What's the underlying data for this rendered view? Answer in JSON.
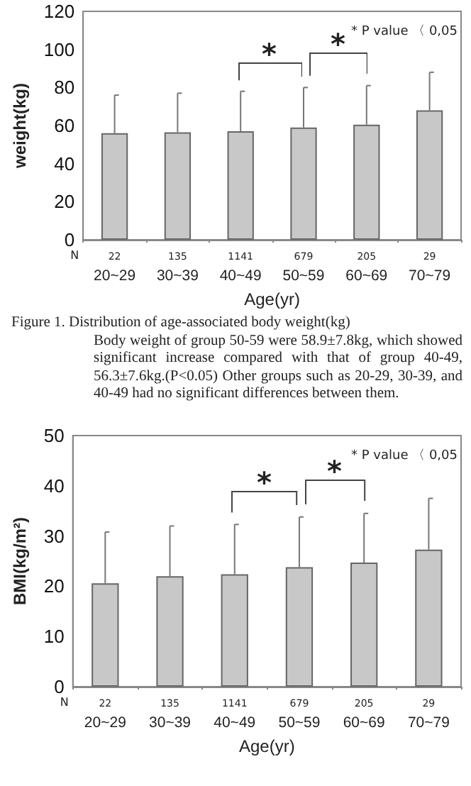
{
  "chart_data": [
    {
      "type": "bar",
      "categories": [
        "20~29",
        "30~39",
        "40~49",
        "50~59",
        "60~69",
        "70~79"
      ],
      "series": [
        {
          "color": "#c8c8c8",
          "values": [
            56,
            56.5,
            57,
            59,
            60.5,
            68
          ],
          "errors": [
            [
              56,
              76
            ],
            [
              56.5,
              77
            ],
            [
              57,
              78
            ],
            [
              59,
              80
            ],
            [
              60.5,
              81
            ],
            [
              68,
              88
            ]
          ]
        }
      ],
      "xlabel": "Age(yr)",
      "ylabel": "weight(kg)",
      "ylim": [
        0,
        120
      ],
      "yticks": [
        0,
        20,
        40,
        60,
        80,
        100,
        120
      ],
      "grid": false,
      "annotations": [
        "* P value 〈 0,05",
        "*",
        "*",
        "N",
        "22",
        "135",
        "1141",
        "679",
        "205",
        "29",
        "Figure 1. Distribution of age-associated body weight(kg)",
        "Body weight of group 50-59 were 58.9±7.8kg, which showed significant increase compared with that of group 40-49, 56.3±7.6kg.(P<0.05) Other groups such as 20-29, 30-39, and 40-49 had no significant differences between them."
      ]
    },
    {
      "type": "bar",
      "categories": [
        "20~29",
        "30~39",
        "40~49",
        "50~59",
        "60~69",
        "70~79"
      ],
      "series": [
        {
          "color": "#c8c8c8",
          "values": [
            20.6,
            22,
            22.4,
            23.8,
            24.7,
            27.3
          ],
          "errors": [
            [
              20.6,
              30.8
            ],
            [
              22,
              32
            ],
            [
              22.4,
              32.3
            ],
            [
              23.8,
              33.8
            ],
            [
              24.7,
              34.5
            ],
            [
              27.3,
              37.5
            ]
          ]
        }
      ],
      "xlabel": "Age(yr)",
      "ylabel": "BMI(kg/m²)",
      "ylim": [
        0,
        50
      ],
      "yticks": [
        0,
        10,
        20,
        30,
        40,
        50
      ],
      "grid": false,
      "annotations": [
        "* P value 〈 0,05",
        "*",
        "*",
        "N",
        "22",
        "135",
        "1141",
        "679",
        "205",
        "29"
      ]
    }
  ]
}
